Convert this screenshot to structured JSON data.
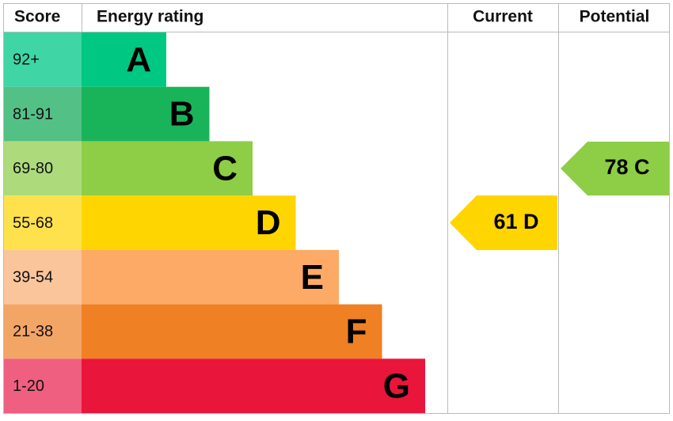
{
  "header": {
    "score": "Score",
    "energy_rating": "Energy rating",
    "current": "Current",
    "potential": "Potential"
  },
  "bands": [
    {
      "score": "92+",
      "letter": "A",
      "score_color": "#3fd5a4",
      "color": "#00c781"
    },
    {
      "score": "81-91",
      "letter": "B",
      "score_color": "#53c086",
      "color": "#19b459"
    },
    {
      "score": "69-80",
      "letter": "C",
      "score_color": "#addb7c",
      "color": "#8dce46"
    },
    {
      "score": "55-68",
      "letter": "D",
      "score_color": "#ffe14d",
      "color": "#ffd500"
    },
    {
      "score": "39-54",
      "letter": "E",
      "score_color": "#fbc59c",
      "color": "#fcaa65"
    },
    {
      "score": "21-38",
      "letter": "F",
      "score_color": "#f3a566",
      "color": "#ef8023"
    },
    {
      "score": "1-20",
      "letter": "G",
      "score_color": "#ef5f7f",
      "color": "#e9153b"
    }
  ],
  "current": {
    "label": "61 D",
    "color": "#ffd500"
  },
  "potential": {
    "label": "78 C",
    "color": "#8dce46"
  }
}
